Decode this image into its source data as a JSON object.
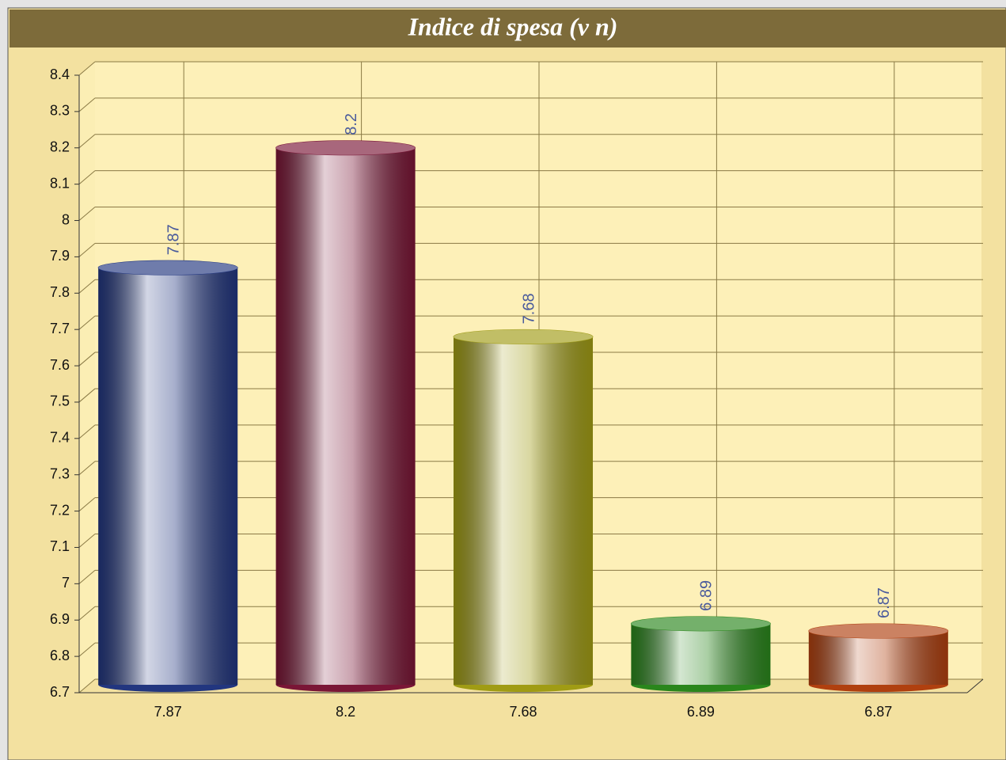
{
  "chart_data": {
    "type": "bar",
    "title": "Indice di spesa (v n)",
    "categories": [
      "7.87",
      "8.2",
      "7.68",
      "6.89",
      "6.87"
    ],
    "values": [
      7.87,
      8.2,
      7.68,
      6.89,
      6.87
    ],
    "colors": [
      "#22367f",
      "#7a1636",
      "#a09c14",
      "#2a861c",
      "#b0400f"
    ],
    "ylim": [
      6.7,
      8.4
    ],
    "yticks": [
      6.7,
      6.8,
      6.9,
      7,
      7.1,
      7.2,
      7.3,
      7.4,
      7.5,
      7.6,
      7.7,
      7.8,
      7.9,
      8,
      8.1,
      8.2,
      8.3,
      8.4
    ],
    "grid": true
  }
}
